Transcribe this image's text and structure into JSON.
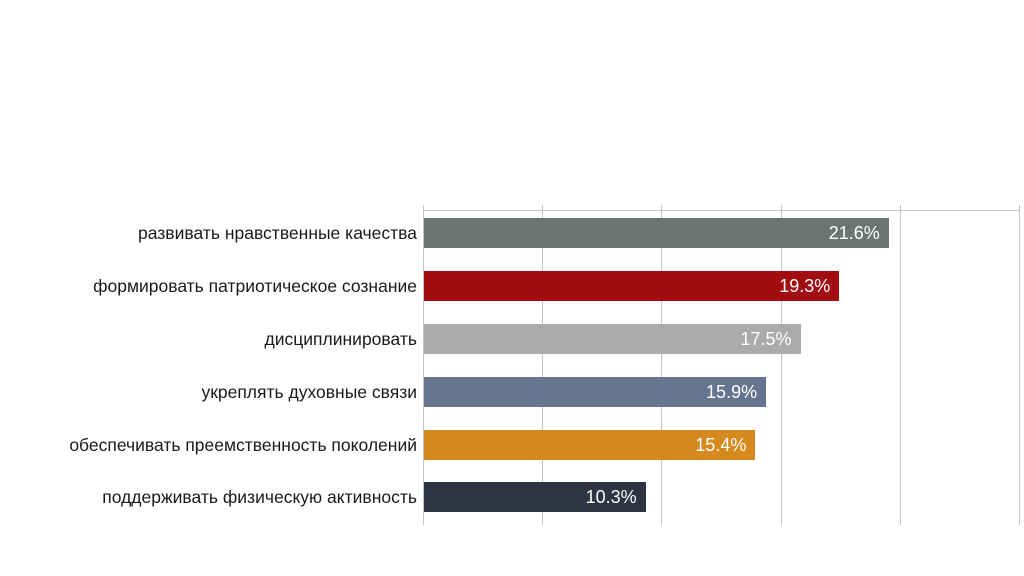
{
  "chart_data": {
    "type": "bar",
    "orientation": "horizontal",
    "title": "",
    "categories": [
      "развивать нравственные качества",
      "формировать патриотическое сознание",
      "дисциплинировать",
      "укреплять духовные связи",
      "обеспечивать преемственность поколений",
      "поддерживать физическую активность"
    ],
    "values": [
      21.6,
      19.3,
      17.5,
      15.9,
      15.4,
      10.3
    ],
    "value_labels": [
      "21.6%",
      "19.3%",
      "17.5%",
      "15.9%",
      "15.4%",
      "10.3%"
    ],
    "bar_colors": [
      "#6F7472",
      "#A20D12",
      "#ABABAB",
      "#66758F",
      "#D48A1E",
      "#2E3442"
    ],
    "axis_min": 0,
    "axis_max": 27.7,
    "gridlines": {
      "count": 6,
      "color": "#C5C5C5",
      "orientation": "vertical"
    },
    "legend": "none",
    "background_color": "#FFFFFF",
    "value_label_color": "#FFFFFF",
    "category_label_color": "#1A1A1A"
  }
}
